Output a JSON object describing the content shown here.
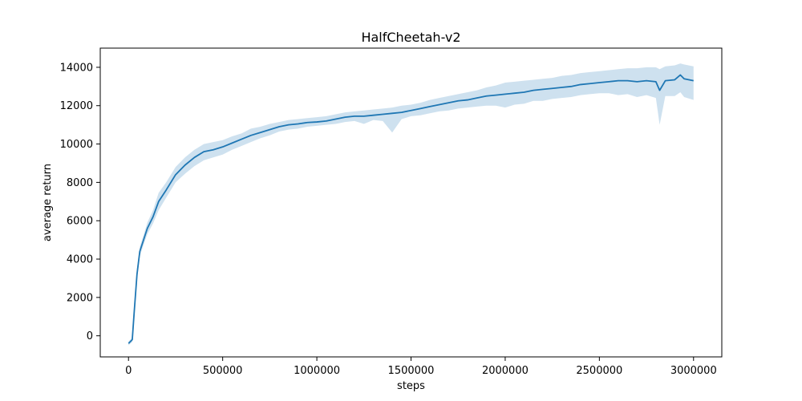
{
  "chart_data": {
    "type": "line",
    "title": "HalfCheetah-v2",
    "xlabel": "steps",
    "ylabel": "average return",
    "xlim": [
      -150000,
      3150000
    ],
    "ylim": [
      -1100,
      15000
    ],
    "x_ticks": [
      0,
      500000,
      1000000,
      1500000,
      2000000,
      2500000,
      3000000
    ],
    "x_tick_labels": [
      "0",
      "500000",
      "1000000",
      "1500000",
      "2000000",
      "2500000",
      "3000000"
    ],
    "y_ticks": [
      0,
      2000,
      4000,
      6000,
      8000,
      10000,
      12000,
      14000
    ],
    "y_tick_labels": [
      "0",
      "2000",
      "4000",
      "6000",
      "8000",
      "10000",
      "12000",
      "14000"
    ],
    "grid": false,
    "line_color": "#1f77b4",
    "band_color": "#1f77b4",
    "series": [
      {
        "x": [
          0,
          10000,
          20000,
          30000,
          45000,
          60000,
          80000,
          100000,
          130000,
          160000,
          200000,
          250000,
          300000,
          350000,
          400000,
          450000,
          500000,
          550000,
          600000,
          650000,
          700000,
          750000,
          800000,
          850000,
          900000,
          950000,
          1000000,
          1050000,
          1100000,
          1150000,
          1200000,
          1250000,
          1300000,
          1350000,
          1400000,
          1450000,
          1500000,
          1550000,
          1600000,
          1650000,
          1700000,
          1750000,
          1800000,
          1850000,
          1900000,
          1950000,
          2000000,
          2050000,
          2100000,
          2150000,
          2200000,
          2250000,
          2300000,
          2350000,
          2400000,
          2450000,
          2500000,
          2550000,
          2600000,
          2650000,
          2700000,
          2750000,
          2800000,
          2820000,
          2850000,
          2900000,
          2930000,
          2950000,
          3000000
        ],
        "y": [
          -400,
          -300,
          -200,
          1200,
          3200,
          4400,
          5000,
          5600,
          6200,
          7000,
          7600,
          8400,
          8900,
          9300,
          9600,
          9700,
          9850,
          10050,
          10250,
          10450,
          10600,
          10750,
          10900,
          11000,
          11050,
          11120,
          11150,
          11200,
          11300,
          11400,
          11450,
          11450,
          11500,
          11550,
          11600,
          11650,
          11750,
          11850,
          11950,
          12050,
          12150,
          12250,
          12300,
          12400,
          12500,
          12550,
          12600,
          12650,
          12700,
          12800,
          12850,
          12900,
          12950,
          13000,
          13100,
          13150,
          13200,
          13250,
          13300,
          13300,
          13250,
          13300,
          13250,
          12800,
          13300,
          13350,
          13600,
          13400,
          13300
        ],
        "lower": [
          -500,
          -400,
          -320,
          900,
          2900,
          4150,
          4750,
          5300,
          5850,
          6550,
          7200,
          8000,
          8450,
          8850,
          9150,
          9300,
          9450,
          9700,
          9900,
          10100,
          10300,
          10450,
          10650,
          10750,
          10800,
          10900,
          10950,
          11000,
          11050,
          11150,
          11200,
          11050,
          11250,
          11200,
          10600,
          11300,
          11450,
          11500,
          11600,
          11700,
          11750,
          11850,
          11900,
          11950,
          12000,
          12000,
          11900,
          12050,
          12100,
          12250,
          12250,
          12350,
          12400,
          12450,
          12550,
          12600,
          12650,
          12650,
          12550,
          12600,
          12450,
          12550,
          12400,
          11000,
          12500,
          12500,
          12700,
          12450,
          12300
        ],
        "upper": [
          -300,
          -200,
          -100,
          1500,
          3500,
          4650,
          5250,
          5900,
          6550,
          7450,
          8000,
          8800,
          9300,
          9700,
          10000,
          10100,
          10200,
          10400,
          10550,
          10800,
          10900,
          11050,
          11150,
          11250,
          11300,
          11350,
          11400,
          11450,
          11550,
          11650,
          11700,
          11750,
          11800,
          11850,
          11900,
          12000,
          12050,
          12150,
          12300,
          12400,
          12500,
          12600,
          12700,
          12800,
          12950,
          13050,
          13200,
          13250,
          13300,
          13350,
          13400,
          13450,
          13550,
          13600,
          13700,
          13750,
          13800,
          13850,
          13900,
          13950,
          13950,
          14000,
          14000,
          13900,
          14050,
          14100,
          14200,
          14150,
          14050
        ]
      }
    ]
  }
}
